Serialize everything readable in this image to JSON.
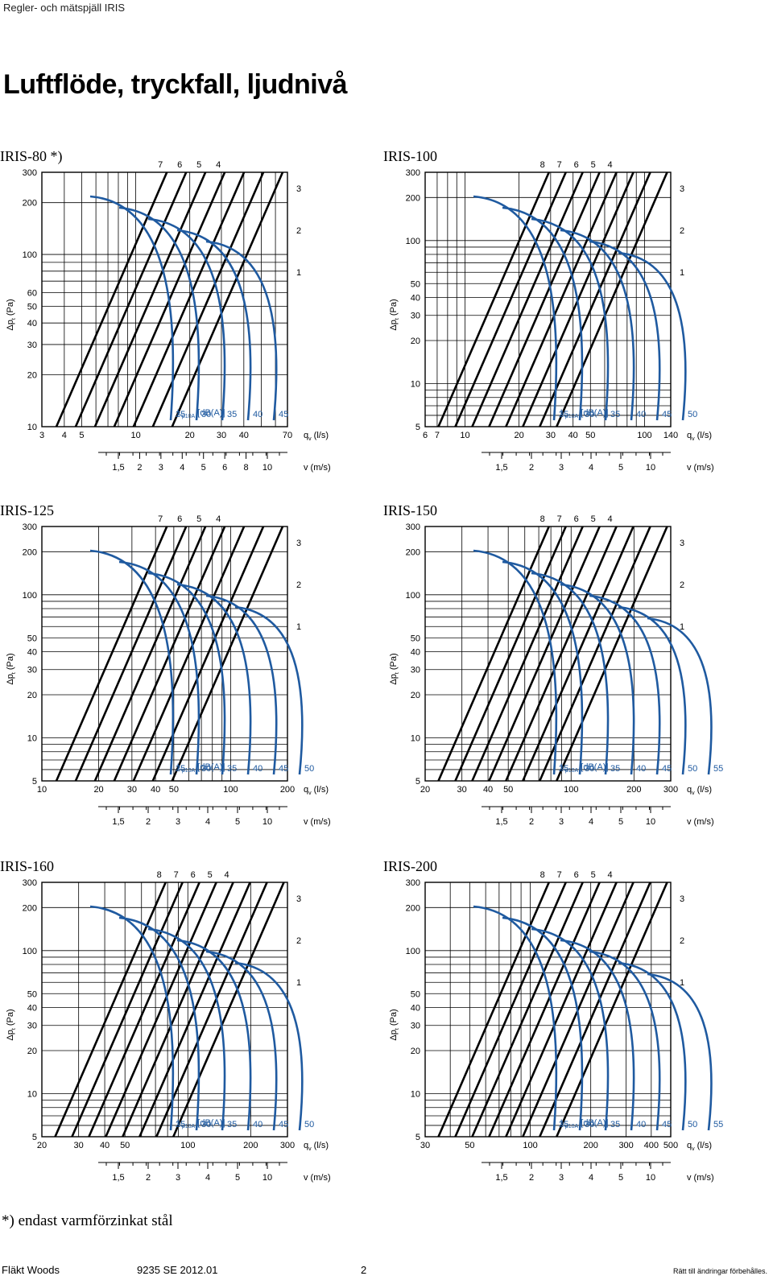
{
  "header": {
    "doc_title": "Regler- och mätspjäll IRIS"
  },
  "page_title": "Luftflöde, tryckfall, ljudnivå",
  "charts_common": {
    "y_axis_label": "Δp",
    "y_axis_sub": "t",
    "y_axis_unit": " (Pa)",
    "x_flow_label": "q",
    "x_flow_sub": "v",
    "x_flow_unit": " (l/s)",
    "x_velocity_label": "v (m/s)",
    "sound_label_prefix": "L",
    "sound_label_sub": "p10A",
    "sound_label_unit": " [dB(A)]"
  },
  "chart_data": [
    {
      "type": "line",
      "title": "IRIS-80 *)",
      "ylabel": "Δpt (Pa)",
      "xlabel": "qv (l/s)",
      "y_ticks": [
        "300",
        "200",
        "100",
        "60",
        "50",
        "40",
        "30",
        "20",
        "10"
      ],
      "x_ticks": [
        "3",
        "4",
        "5",
        "10",
        "20",
        "30",
        "40",
        "70"
      ],
      "v_ticks": [
        "1,5",
        "2",
        "3",
        "4",
        "5",
        "6",
        "8",
        "10"
      ],
      "damper_positions": [
        "7",
        "6",
        "5",
        "4",
        "3",
        "2",
        "1"
      ],
      "sound_levels_dBA": [
        "45",
        "40",
        "35",
        "30",
        "25"
      ]
    },
    {
      "type": "line",
      "title": "IRIS-100",
      "ylabel": "Δpt (Pa)",
      "xlabel": "qv (l/s)",
      "y_ticks": [
        "300",
        "200",
        "100",
        "50",
        "40",
        "30",
        "20",
        "10",
        "5"
      ],
      "x_ticks": [
        "6",
        "7",
        "10",
        "20",
        "30",
        "40",
        "50",
        "100",
        "140"
      ],
      "v_ticks": [
        "1,5",
        "2",
        "3",
        "4",
        "5",
        "10"
      ],
      "damper_positions": [
        "8",
        "7",
        "6",
        "5",
        "4",
        "3",
        "2",
        "1"
      ],
      "sound_levels_dBA": [
        "50",
        "45",
        "40",
        "35",
        "30",
        "25"
      ]
    },
    {
      "type": "line",
      "title": "IRIS-125",
      "ylabel": "Δpt (Pa)",
      "xlabel": "qv (l/s)",
      "y_ticks": [
        "300",
        "200",
        "100",
        "50",
        "40",
        "30",
        "20",
        "10",
        "5"
      ],
      "x_ticks": [
        "10",
        "20",
        "30",
        "40",
        "50",
        "100",
        "200"
      ],
      "v_ticks": [
        "1,5",
        "2",
        "3",
        "4",
        "5",
        "10"
      ],
      "damper_positions": [
        "7",
        "6",
        "5",
        "4",
        "3",
        "2",
        "1"
      ],
      "sound_levels_dBA": [
        "50",
        "45",
        "40",
        "35",
        "30",
        "25"
      ]
    },
    {
      "type": "line",
      "title": "IRIS-150",
      "ylabel": "Δpt (Pa)",
      "xlabel": "qv (l/s)",
      "y_ticks": [
        "300",
        "200",
        "100",
        "50",
        "40",
        "30",
        "20",
        "10",
        "5"
      ],
      "x_ticks": [
        "20",
        "30",
        "40",
        "50",
        "100",
        "200",
        "300"
      ],
      "v_ticks": [
        "1,5",
        "2",
        "3",
        "4",
        "5",
        "10"
      ],
      "damper_positions": [
        "8",
        "7",
        "6",
        "5",
        "4",
        "3",
        "2",
        "1"
      ],
      "sound_levels_dBA": [
        "55",
        "50",
        "45",
        "40",
        "35",
        "30",
        "25"
      ]
    },
    {
      "type": "line",
      "title": "IRIS-160",
      "ylabel": "Δpt (Pa)",
      "xlabel": "qv (l/s)",
      "y_ticks": [
        "300",
        "200",
        "100",
        "50",
        "40",
        "30",
        "20",
        "10",
        "5"
      ],
      "x_ticks": [
        "20",
        "30",
        "40",
        "50",
        "100",
        "200",
        "300"
      ],
      "v_ticks": [
        "1,5",
        "2",
        "3",
        "4",
        "5",
        "10"
      ],
      "damper_positions": [
        "8",
        "7",
        "6",
        "5",
        "4",
        "3",
        "2",
        "1"
      ],
      "sound_levels_dBA": [
        "50",
        "45",
        "40",
        "35",
        "30",
        "25"
      ]
    },
    {
      "type": "line",
      "title": "IRIS-200",
      "ylabel": "Δpt (Pa)",
      "xlabel": "qv (l/s)",
      "y_ticks": [
        "300",
        "200",
        "100",
        "50",
        "40",
        "30",
        "20",
        "10",
        "5"
      ],
      "x_ticks": [
        "30",
        "50",
        "100",
        "200",
        "300",
        "400",
        "500"
      ],
      "v_ticks": [
        "1,5",
        "2",
        "3",
        "4",
        "5",
        "10"
      ],
      "damper_positions": [
        "8",
        "7",
        "6",
        "5",
        "4",
        "3",
        "2",
        "1"
      ],
      "sound_levels_dBA": [
        "55",
        "50",
        "45",
        "40",
        "35",
        "30",
        "25"
      ]
    }
  ],
  "footnote": "*) endast varmförzinkat stål",
  "footer": {
    "company": "Fläkt Woods",
    "doc_number": "9235 SE 2012.01",
    "page_number": "2",
    "rights": "Rätt till ändringar förbehålles."
  }
}
